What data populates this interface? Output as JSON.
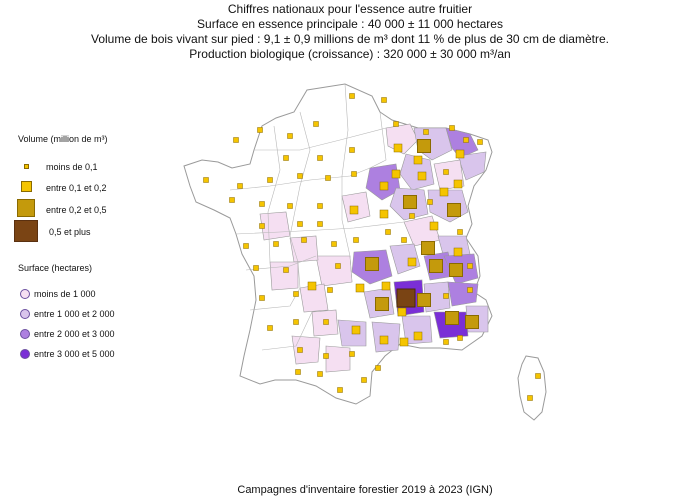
{
  "header": {
    "title": "Chiffres nationaux pour l'essence autre fruitier",
    "line2": "Surface en essence principale : 40 000 ± 11 000 hectares",
    "line3": "Volume de bois vivant sur pied : 9,1 ± 0,9 millions de m³ dont 11 % de plus de 30 cm de diamètre.",
    "line4": "Production biologique (croissance) : 320 000 ± 30 000 m³/an"
  },
  "legend_volume": {
    "title": "Volume (million de m³)",
    "items": [
      {
        "label": "moins de 0,1",
        "color": "#f5c400"
      },
      {
        "label": "entre 0,1 et 0,2",
        "color": "#f5c400"
      },
      {
        "label": "entre 0,2 et 0,5",
        "color": "#c49a0c"
      },
      {
        "label": "0,5 et plus",
        "color": "#7a4414"
      }
    ]
  },
  "legend_surface": {
    "title": "Surface (hectares)",
    "items": [
      {
        "label": "moins de 1 000",
        "color": "#f5dff2"
      },
      {
        "label": "entre 1 000 et 2 000",
        "color": "#d9c5ec"
      },
      {
        "label": "entre 2 000 et 3 000",
        "color": "#ad80e0"
      },
      {
        "label": "entre 3 000 et 5 000",
        "color": "#7a2fd6"
      }
    ]
  },
  "footer": "Campagnes d'inventaire forestier 2019 à 2023 (IGN)",
  "map_colors": {
    "border": "#9a9a9a",
    "blank": "#ffffff"
  }
}
